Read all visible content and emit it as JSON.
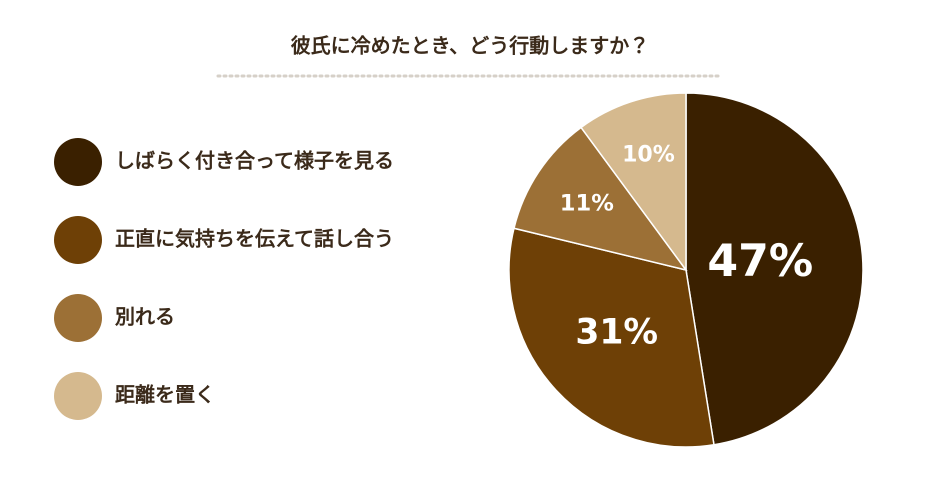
{
  "chart_data": {
    "type": "pie",
    "title": "彼氏に冷めたとき、どう行動しますか？",
    "categories": [
      "しばらく付き合って様子を見る",
      "正直に気持ちを伝えて話し合う",
      "別れる",
      "距離を置く"
    ],
    "values": [
      47,
      31,
      11,
      10
    ],
    "value_labels": [
      "47%",
      "31%",
      "11%",
      "10%"
    ],
    "colors": [
      "#3a2000",
      "#6e4006",
      "#9c7036",
      "#d5b98e"
    ]
  }
}
